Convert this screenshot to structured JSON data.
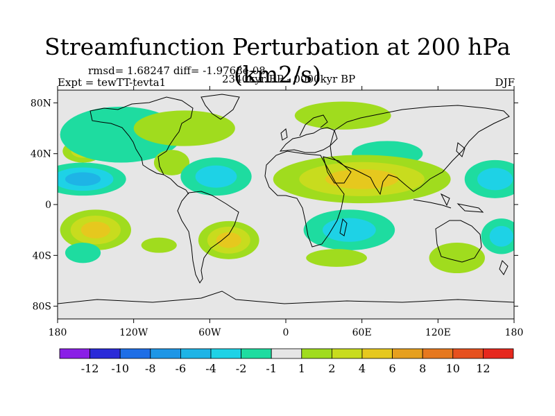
{
  "title": "Streamfunction Perturbation at 200 hPa (km2/s)",
  "stats": "rmsd= 1.68247 diff= -1.9768e-08",
  "experiment": "Expt = tewTT-tevta1",
  "period": "2340kyr BP - 0000kyr BP",
  "season": "DJF",
  "lat_ticks": [
    "80N",
    "40N",
    "0",
    "40S",
    "80S"
  ],
  "lon_ticks": [
    "180",
    "120W",
    "60W",
    "0",
    "60E",
    "120E",
    "180"
  ],
  "colorbar": {
    "colors": [
      "#8a1fe6",
      "#2a2ad8",
      "#1e6ee6",
      "#1e96e6",
      "#1eb4e6",
      "#1ed2e6",
      "#1edca0",
      "#e6e6e6",
      "#a0dc1e",
      "#c8dc1e",
      "#e6c81e",
      "#e6a01e",
      "#e6781e",
      "#e6501e",
      "#e6281e"
    ],
    "labels": [
      "-12",
      "-10",
      "-8",
      "-6",
      "-4",
      "-2",
      "-1",
      "1",
      "2",
      "4",
      "6",
      "8",
      "10",
      "12"
    ]
  },
  "anomalies": [
    {
      "lon": -160,
      "lat": 42,
      "rx": 16,
      "ry": 9,
      "sign": 1,
      "level": 2
    },
    {
      "lon": -160,
      "lat": 20,
      "rx": 34,
      "ry": 13,
      "sign": -1,
      "level": 3
    },
    {
      "lon": -150,
      "lat": -20,
      "rx": 28,
      "ry": 16,
      "sign": 1,
      "level": 3
    },
    {
      "lon": -130,
      "lat": 55,
      "rx": 48,
      "ry": 22,
      "sign": -1,
      "level": 1
    },
    {
      "lon": -80,
      "lat": 60,
      "rx": 40,
      "ry": 14,
      "sign": 1,
      "level": 1
    },
    {
      "lon": -90,
      "lat": 33,
      "rx": 14,
      "ry": 10,
      "sign": 1,
      "level": 1
    },
    {
      "lon": -55,
      "lat": 22,
      "rx": 28,
      "ry": 15,
      "sign": -1,
      "level": 2
    },
    {
      "lon": -45,
      "lat": -28,
      "rx": 24,
      "ry": 15,
      "sign": 1,
      "level": 3
    },
    {
      "lon": -100,
      "lat": -32,
      "rx": 14,
      "ry": 6,
      "sign": 1,
      "level": 1
    },
    {
      "lon": -160,
      "lat": -38,
      "rx": 14,
      "ry": 8,
      "sign": -1,
      "level": 1
    },
    {
      "lon": 45,
      "lat": 70,
      "rx": 38,
      "ry": 11,
      "sign": 1,
      "level": 1
    },
    {
      "lon": 80,
      "lat": 40,
      "rx": 28,
      "ry": 10,
      "sign": -1,
      "level": 1
    },
    {
      "lon": 60,
      "lat": 20,
      "rx": 70,
      "ry": 19,
      "sign": 1,
      "level": 3
    },
    {
      "lon": 50,
      "lat": -20,
      "rx": 36,
      "ry": 16,
      "sign": -1,
      "level": 2
    },
    {
      "lon": 40,
      "lat": -42,
      "rx": 24,
      "ry": 7,
      "sign": 1,
      "level": 1
    },
    {
      "lon": 135,
      "lat": -42,
      "rx": 22,
      "ry": 12,
      "sign": 1,
      "level": 1
    },
    {
      "lon": 165,
      "lat": 20,
      "rx": 24,
      "ry": 15,
      "sign": -1,
      "level": 2
    },
    {
      "lon": 170,
      "lat": -25,
      "rx": 16,
      "ry": 14,
      "sign": -1,
      "level": 2
    }
  ]
}
